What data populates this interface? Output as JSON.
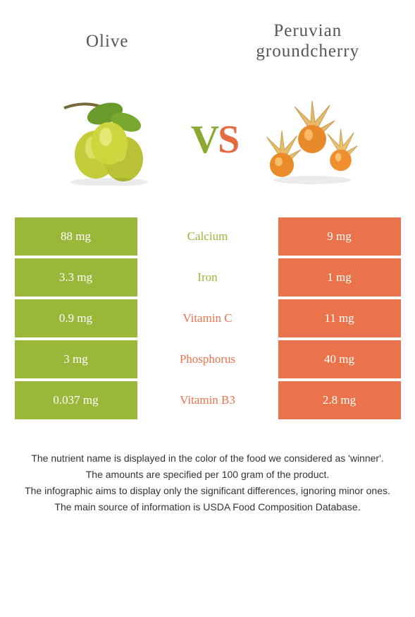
{
  "titles": {
    "left": "Olive",
    "right_line1": "Peruvian",
    "right_line2": "groundcherry"
  },
  "vs": {
    "v": "V",
    "s": "S"
  },
  "colors": {
    "left_bg": "#9ab73a",
    "right_bg": "#eb734b",
    "left_text": "#9ab73a",
    "right_text": "#eb734b",
    "row_gap": "#ffffff"
  },
  "rows": [
    {
      "left": "88 mg",
      "mid": "Calcium",
      "right": "9 mg",
      "winner": "left"
    },
    {
      "left": "3.3 mg",
      "mid": "Iron",
      "right": "1 mg",
      "winner": "left"
    },
    {
      "left": "0.9 mg",
      "mid": "Vitamin C",
      "right": "11 mg",
      "winner": "right"
    },
    {
      "left": "3 mg",
      "mid": "Phosphorus",
      "right": "40 mg",
      "winner": "right"
    },
    {
      "left": "0.037 mg",
      "mid": "Vitamin B3",
      "right": "2.8 mg",
      "winner": "right"
    }
  ],
  "footnotes": [
    "The nutrient name is displayed in the color of the food we considered as 'winner'.",
    "The amounts are specified per 100 gram of the product.",
    "The infographic aims to display only the significant differences, ignoring minor ones.",
    "The main source of information is USDA Food Composition Database."
  ]
}
